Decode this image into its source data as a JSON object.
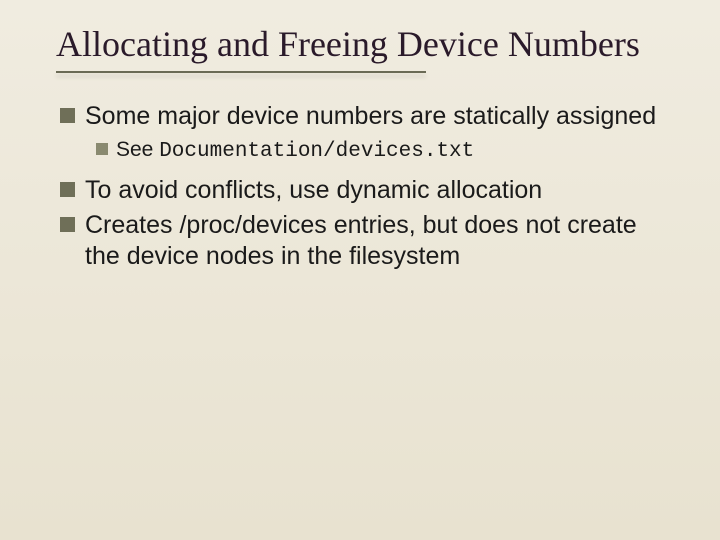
{
  "slide": {
    "title": "Allocating and Freeing Device Numbers",
    "title_color": "#2a1a2a",
    "title_fontsize": 36,
    "underline_color": "#6a6a55",
    "background_gradient": [
      "#f0ece0",
      "#e8e2d0"
    ],
    "bullets": [
      {
        "level": 1,
        "text": "Some major device numbers are statically assigned",
        "marker_color": "#6f6f58",
        "marker_size": 15,
        "fontsize": 25,
        "children": [
          {
            "level": 2,
            "prefix": "See ",
            "code": "Documentation/devices.txt",
            "marker_color": "#8a8a70",
            "marker_size": 12,
            "fontsize": 21
          }
        ]
      },
      {
        "level": 1,
        "text": "To avoid conflicts, use dynamic allocation",
        "marker_color": "#6f6f58",
        "marker_size": 15,
        "fontsize": 25
      },
      {
        "level": 1,
        "text": "Creates /proc/devices entries, but does not create the device nodes in the filesystem",
        "marker_color": "#6f6f58",
        "marker_size": 15,
        "fontsize": 25
      }
    ]
  }
}
